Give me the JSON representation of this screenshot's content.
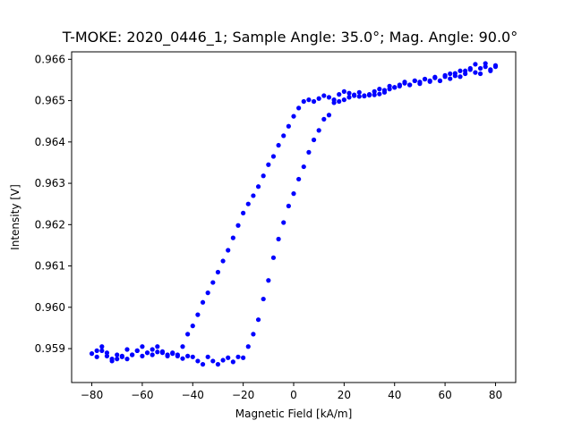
{
  "chart_data": {
    "type": "scatter",
    "title": "T-MOKE: 2020_0446_1; Sample Angle: 35.0°; Mag. Angle: 90.0°",
    "xlabel": "Magnetic Field [kA/m]",
    "ylabel": "Intensity [V]",
    "xlim": [
      -88,
      88
    ],
    "ylim": [
      0.95818,
      0.96618
    ],
    "xticks": [
      "−80",
      "−60",
      "−40",
      "−20",
      "0",
      "20",
      "40",
      "60",
      "80"
    ],
    "yticks": [
      "0.959",
      "0.960",
      "0.961",
      "0.962",
      "0.963",
      "0.964",
      "0.965",
      "0.966"
    ],
    "xtick_values": [
      -80,
      -60,
      -40,
      -20,
      0,
      20,
      40,
      60,
      80
    ],
    "ytick_values": [
      0.959,
      0.96,
      0.961,
      0.962,
      0.963,
      0.964,
      0.965,
      0.966
    ],
    "grid": false,
    "marker_color": "#0000ff",
    "series": [
      {
        "branch": "descending",
        "x": [
          80,
          78,
          76,
          74,
          72,
          70,
          68,
          66,
          64,
          62,
          60,
          58,
          56,
          54,
          52,
          50,
          48,
          46,
          44,
          42,
          40,
          38,
          36,
          34,
          32,
          30,
          28,
          26,
          24,
          22,
          20,
          18,
          16,
          14,
          12,
          10,
          8,
          6,
          4,
          2,
          0,
          -2,
          -4,
          -6,
          -8,
          -10,
          -12,
          -14,
          -16,
          -18,
          -20,
          -22,
          -24,
          -26,
          -28,
          -30,
          -32,
          -34,
          -36,
          -38,
          -40,
          -42,
          -44,
          -46,
          -48,
          -50,
          -52,
          -54,
          -56,
          -58,
          -60,
          -62,
          -64,
          -66,
          -68,
          -70,
          -72,
          -74,
          -76,
          -78,
          -80
        ],
        "y": [
          0.96582,
          0.96575,
          0.9659,
          0.96565,
          0.96588,
          0.96578,
          0.96572,
          0.96558,
          0.96566,
          0.96553,
          0.96561,
          0.96548,
          0.96557,
          0.96546,
          0.96552,
          0.96541,
          0.96548,
          0.96538,
          0.96542,
          0.96535,
          0.96532,
          0.96528,
          0.9652,
          0.96516,
          0.96514,
          0.96513,
          0.96511,
          0.9651,
          0.96512,
          0.96508,
          0.96502,
          0.96498,
          0.96495,
          0.96465,
          0.96455,
          0.96428,
          0.96405,
          0.96375,
          0.9634,
          0.9631,
          0.96275,
          0.96245,
          0.96205,
          0.96165,
          0.9612,
          0.96065,
          0.9602,
          0.9597,
          0.95935,
          0.95905,
          0.95878,
          0.9588,
          0.95868,
          0.95878,
          0.95872,
          0.95862,
          0.9587,
          0.9588,
          0.95862,
          0.9587,
          0.9588,
          0.95882,
          0.95876,
          0.95885,
          0.95888,
          0.95882,
          0.95893,
          0.95892,
          0.95885,
          0.9589,
          0.95882,
          0.95895,
          0.95885,
          0.95875,
          0.9588,
          0.95885,
          0.95875,
          0.95882,
          0.95895,
          0.9588,
          0.95888
        ]
      },
      {
        "branch": "ascending",
        "x": [
          -78,
          -76,
          -74,
          -72,
          -70,
          -68,
          -66,
          -64,
          -62,
          -60,
          -58,
          -56,
          -54,
          -52,
          -50,
          -48,
          -46,
          -44,
          -42,
          -40,
          -38,
          -36,
          -34,
          -32,
          -30,
          -28,
          -26,
          -24,
          -22,
          -20,
          -18,
          -16,
          -14,
          -12,
          -10,
          -8,
          -6,
          -4,
          -2,
          0,
          2,
          4,
          6,
          8,
          10,
          12,
          14,
          16,
          18,
          20,
          22,
          24,
          26,
          28,
          30,
          32,
          34,
          36,
          38,
          40,
          42,
          44,
          46,
          48,
          50,
          52,
          54,
          56,
          58,
          60,
          62,
          64,
          66,
          68,
          70,
          72,
          74,
          76,
          78,
          80
        ],
        "y": [
          0.95895,
          0.95905,
          0.9589,
          0.9587,
          0.95875,
          0.95882,
          0.95898,
          0.95885,
          0.95895,
          0.95905,
          0.9589,
          0.95898,
          0.95905,
          0.9589,
          0.95885,
          0.9589,
          0.95882,
          0.95905,
          0.95935,
          0.95955,
          0.95982,
          0.96012,
          0.96035,
          0.9606,
          0.96085,
          0.96112,
          0.96138,
          0.96168,
          0.96198,
          0.96228,
          0.9625,
          0.9627,
          0.96292,
          0.96318,
          0.96345,
          0.96365,
          0.96392,
          0.96415,
          0.96438,
          0.96462,
          0.96482,
          0.96498,
          0.96502,
          0.96498,
          0.96505,
          0.96512,
          0.96508,
          0.96502,
          0.96515,
          0.96522,
          0.96518,
          0.96514,
          0.9652,
          0.96512,
          0.96515,
          0.96522,
          0.96528,
          0.96525,
          0.96535,
          0.96532,
          0.96538,
          0.96545,
          0.96538,
          0.96548,
          0.96545,
          0.96552,
          0.96548,
          0.96555,
          0.96548,
          0.96558,
          0.96565,
          0.9656,
          0.96572,
          0.96565,
          0.96575,
          0.96568,
          0.96578,
          0.96582,
          0.96572,
          0.96585
        ]
      }
    ]
  }
}
